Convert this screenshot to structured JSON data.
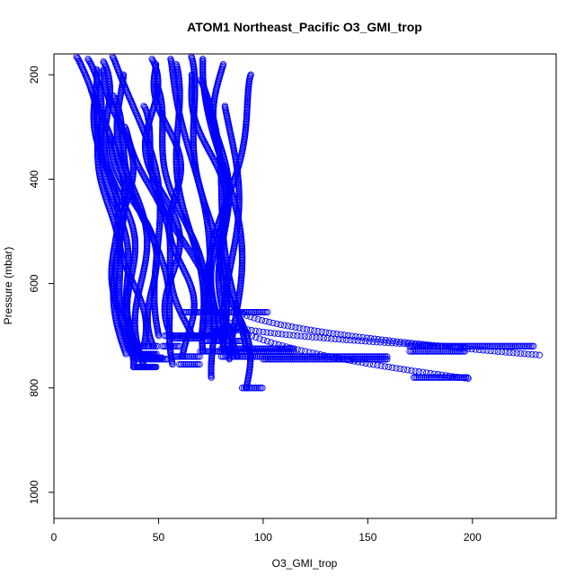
{
  "chart_data": {
    "type": "scatter",
    "title": "ATOM1 Northeast_Pacific O3_GMI_trop",
    "xlabel": "O3_GMI_trop",
    "ylabel": "Pressure (mbar)",
    "xlim": [
      0,
      240
    ],
    "ylim": [
      1050,
      160
    ],
    "y_reversed": true,
    "x_ticks": [
      "0",
      "50",
      "100",
      "150",
      "200"
    ],
    "y_ticks": [
      "200",
      "400",
      "600",
      "800",
      "1000"
    ],
    "marker": "open-circle",
    "color": "#0000ff",
    "profiles": [
      {
        "start": [
          12,
          165
        ],
        "end": [
          37,
          742
        ],
        "min": 38,
        "max": 52
      },
      {
        "start": [
          15,
          170
        ],
        "end": [
          40,
          735
        ],
        "min": 39,
        "max": 48
      },
      {
        "start": [
          18,
          190
        ],
        "end": [
          35,
          760
        ],
        "min": 38,
        "max": 49
      },
      {
        "start": [
          20,
          175
        ],
        "end": [
          42,
          745
        ],
        "min": 40,
        "max": 55
      },
      {
        "start": [
          22,
          230
        ],
        "end": [
          36,
          735
        ],
        "min": 37,
        "max": 49
      },
      {
        "start": [
          28,
          190
        ],
        "end": [
          40,
          720
        ],
        "min": 39,
        "max": 50
      },
      {
        "start": [
          31,
          200
        ],
        "end": [
          45,
          760
        ],
        "min": 40,
        "max": 49
      },
      {
        "start": [
          33,
          165
        ],
        "end": [
          55,
          700
        ],
        "min": 53,
        "max": 72
      },
      {
        "start": [
          42,
          170
        ],
        "end": [
          60,
          705
        ],
        "min": 58,
        "max": 70
      },
      {
        "start": [
          50,
          180
        ],
        "end": [
          65,
          740
        ],
        "min": 56,
        "max": 70
      },
      {
        "start": [
          55,
          180
        ],
        "end": [
          70,
          700
        ],
        "min": 64,
        "max": 80
      },
      {
        "start": [
          58,
          170
        ],
        "end": [
          75,
          655
        ],
        "min": 62,
        "max": 102
      },
      {
        "start": [
          62,
          165
        ],
        "end": [
          82,
          710
        ],
        "min": 72,
        "max": 90
      },
      {
        "start": [
          66,
          200
        ],
        "end": [
          92,
          800
        ],
        "min": 90,
        "max": 100
      },
      {
        "start": [
          70,
          210
        ],
        "end": [
          90,
          725
        ],
        "min": 80,
        "max": 115
      },
      {
        "start": [
          74,
          170
        ],
        "end": [
          85,
          740
        ],
        "min": 80,
        "max": 160
      },
      {
        "start": [
          77,
          220
        ],
        "end": [
          88,
          745
        ],
        "min": 100,
        "max": 160
      },
      {
        "start": [
          80,
          180
        ],
        "end": [
          78,
          720
        ],
        "min": 170,
        "max": 230
      },
      {
        "start": [
          84,
          260
        ],
        "end": [
          85,
          730
        ],
        "min": 170,
        "max": 197
      },
      {
        "start": [
          96,
          200
        ],
        "end": [
          72,
          690
        ],
        "min": 75,
        "max": 87
      },
      {
        "start": [
          25,
          240
        ],
        "end": [
          60,
          755
        ],
        "min": 60,
        "max": 70
      },
      {
        "start": [
          35,
          300
        ],
        "end": [
          65,
          700
        ],
        "min": 58,
        "max": 85
      },
      {
        "start": [
          30,
          320
        ],
        "end": [
          52,
          720
        ],
        "min": 52,
        "max": 60
      },
      {
        "start": [
          45,
          220
        ],
        "end": [
          75,
          730
        ],
        "min": 70,
        "max": 115
      },
      {
        "start": [
          38,
          260
        ],
        "end": [
          80,
          780
        ],
        "min": 172,
        "max": 198
      }
    ],
    "tails": [
      {
        "from": [
          85,
          640
        ],
        "to": [
          232,
          737
        ]
      },
      {
        "from": [
          82,
          660
        ],
        "to": [
          198,
          782
        ]
      },
      {
        "from": [
          80,
          672
        ],
        "to": [
          196,
          722
        ]
      }
    ]
  }
}
